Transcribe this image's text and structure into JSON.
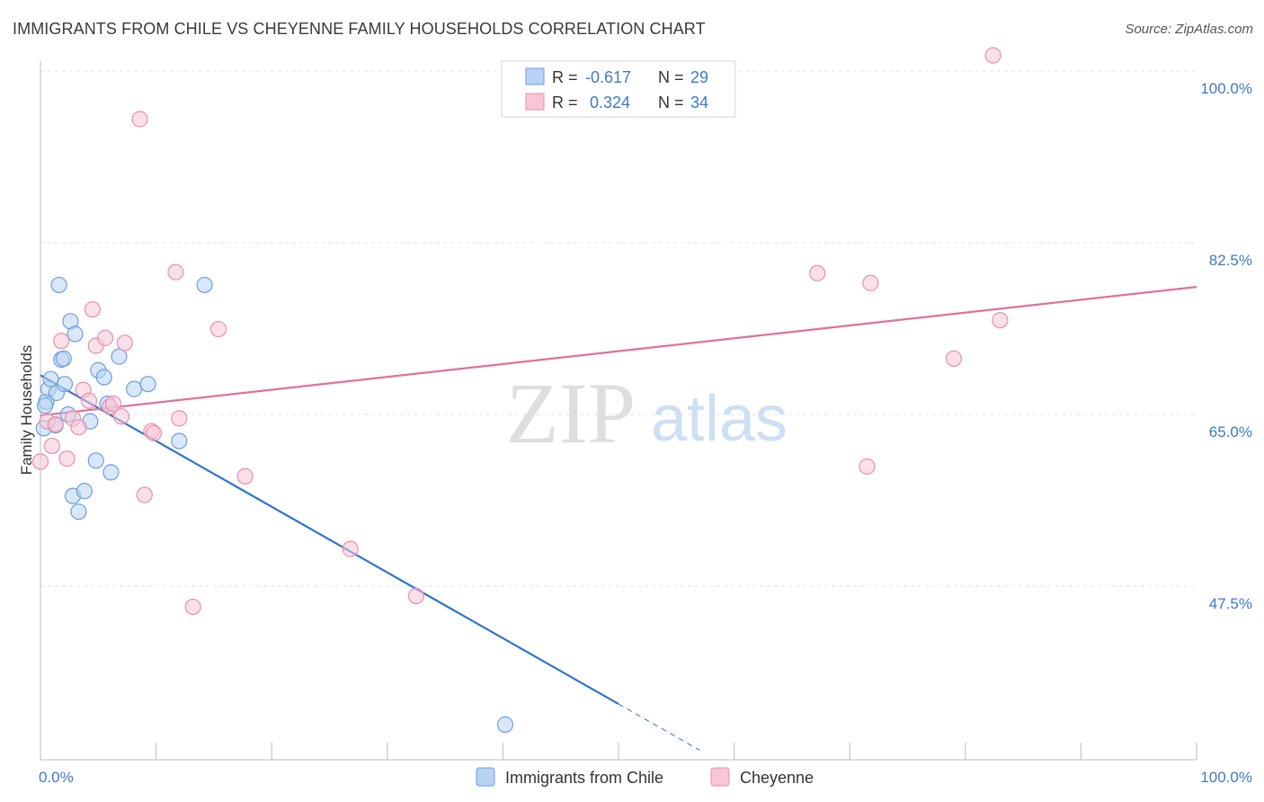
{
  "header": {
    "title": "IMMIGRANTS FROM CHILE VS CHEYENNE FAMILY HOUSEHOLDS CORRELATION CHART",
    "source": "Source: ZipAtlas.com"
  },
  "watermark": {
    "zip": "ZIP",
    "atlas": "atlas"
  },
  "colors": {
    "blue": "#6a9fe0",
    "blue_fill": "#b8d3f5",
    "blue_line": "#2e74cf",
    "pink": "#e88fae",
    "pink_fill": "#f8c6d6",
    "pink_line": "#e0709a",
    "tick_text": "#3f79c6",
    "grid": "#e3e3e3"
  },
  "legend": {
    "rows": [
      {
        "r_label": "R =",
        "r_value": "-0.617",
        "n_label": "N =",
        "n_value": "29"
      },
      {
        "r_label": "R =",
        "r_value": "0.324",
        "n_label": "N =",
        "n_value": "34"
      }
    ]
  },
  "bottom_legend": [
    "Immigrants from Chile",
    "Cheyenne"
  ],
  "chart_data": {
    "type": "scatter",
    "title": "IMMIGRANTS FROM CHILE VS CHEYENNE FAMILY HOUSEHOLDS CORRELATION CHART",
    "xlabel": "",
    "ylabel": "Family Households",
    "xlim": [
      0,
      100
    ],
    "ylim": [
      30,
      101.5
    ],
    "y_ticks": [
      47.5,
      65.0,
      82.5,
      100.0
    ],
    "y_tick_labels": [
      "47.5%",
      "65.0%",
      "82.5%",
      "100.0%"
    ],
    "x_tick_labels": [
      "0.0%",
      "100.0%"
    ],
    "grid": true,
    "series": [
      {
        "name": "Immigrants from Chile",
        "color": "#6a9fe0",
        "R": -0.617,
        "N": 29,
        "points": [
          {
            "x": 0.3,
            "y": 63.6
          },
          {
            "x": 0.5,
            "y": 66.3
          },
          {
            "x": 0.7,
            "y": 67.6
          },
          {
            "x": 0.9,
            "y": 68.6
          },
          {
            "x": 1.3,
            "y": 63.9
          },
          {
            "x": 1.4,
            "y": 67.2
          },
          {
            "x": 1.6,
            "y": 78.2
          },
          {
            "x": 1.8,
            "y": 70.6
          },
          {
            "x": 2.0,
            "y": 70.7
          },
          {
            "x": 2.1,
            "y": 68.1
          },
          {
            "x": 2.4,
            "y": 65.0
          },
          {
            "x": 2.6,
            "y": 74.5
          },
          {
            "x": 2.8,
            "y": 56.7
          },
          {
            "x": 3.0,
            "y": 73.2
          },
          {
            "x": 3.3,
            "y": 55.1
          },
          {
            "x": 3.8,
            "y": 57.2
          },
          {
            "x": 4.3,
            "y": 64.3
          },
          {
            "x": 4.8,
            "y": 60.3
          },
          {
            "x": 5.0,
            "y": 69.5
          },
          {
            "x": 5.5,
            "y": 68.8
          },
          {
            "x": 5.8,
            "y": 66.1
          },
          {
            "x": 6.1,
            "y": 59.1
          },
          {
            "x": 6.8,
            "y": 70.9
          },
          {
            "x": 8.1,
            "y": 67.6
          },
          {
            "x": 9.3,
            "y": 68.1
          },
          {
            "x": 12.0,
            "y": 62.3
          },
          {
            "x": 14.2,
            "y": 78.2
          },
          {
            "x": 40.2,
            "y": 33.4
          },
          {
            "x": 0.4,
            "y": 65.9
          }
        ],
        "trend": {
          "x0": 0,
          "y0": 69.0,
          "x1": 50,
          "y1": 35.5,
          "dash_x1": 57,
          "dash_y1": 30.8
        }
      },
      {
        "name": "Cheyenne",
        "color": "#e88fae",
        "R": 0.324,
        "N": 34,
        "points": [
          {
            "x": 0.0,
            "y": 60.2
          },
          {
            "x": 0.6,
            "y": 64.3
          },
          {
            "x": 1.0,
            "y": 61.8
          },
          {
            "x": 1.3,
            "y": 64.0
          },
          {
            "x": 1.8,
            "y": 72.5
          },
          {
            "x": 2.3,
            "y": 60.5
          },
          {
            "x": 2.8,
            "y": 64.6
          },
          {
            "x": 3.3,
            "y": 63.7
          },
          {
            "x": 3.7,
            "y": 67.5
          },
          {
            "x": 4.2,
            "y": 66.4
          },
          {
            "x": 4.5,
            "y": 75.7
          },
          {
            "x": 4.8,
            "y": 72.0
          },
          {
            "x": 5.6,
            "y": 72.8
          },
          {
            "x": 6.0,
            "y": 65.8
          },
          {
            "x": 6.3,
            "y": 66.1
          },
          {
            "x": 7.0,
            "y": 64.8
          },
          {
            "x": 7.3,
            "y": 72.3
          },
          {
            "x": 8.6,
            "y": 95.1
          },
          {
            "x": 9.0,
            "y": 56.8
          },
          {
            "x": 9.6,
            "y": 63.3
          },
          {
            "x": 9.8,
            "y": 63.1
          },
          {
            "x": 11.7,
            "y": 79.5
          },
          {
            "x": 12.0,
            "y": 64.6
          },
          {
            "x": 13.2,
            "y": 45.4
          },
          {
            "x": 15.4,
            "y": 73.7
          },
          {
            "x": 17.7,
            "y": 58.7
          },
          {
            "x": 26.8,
            "y": 51.3
          },
          {
            "x": 32.5,
            "y": 46.5
          },
          {
            "x": 67.2,
            "y": 79.4
          },
          {
            "x": 71.5,
            "y": 59.7
          },
          {
            "x": 71.8,
            "y": 78.4
          },
          {
            "x": 79.0,
            "y": 70.7
          },
          {
            "x": 83.0,
            "y": 74.6
          },
          {
            "x": 82.4,
            "y": 101.6
          }
        ],
        "trend": {
          "x0": 0,
          "y0": 64.9,
          "x1": 100,
          "y1": 78.0
        }
      }
    ]
  }
}
